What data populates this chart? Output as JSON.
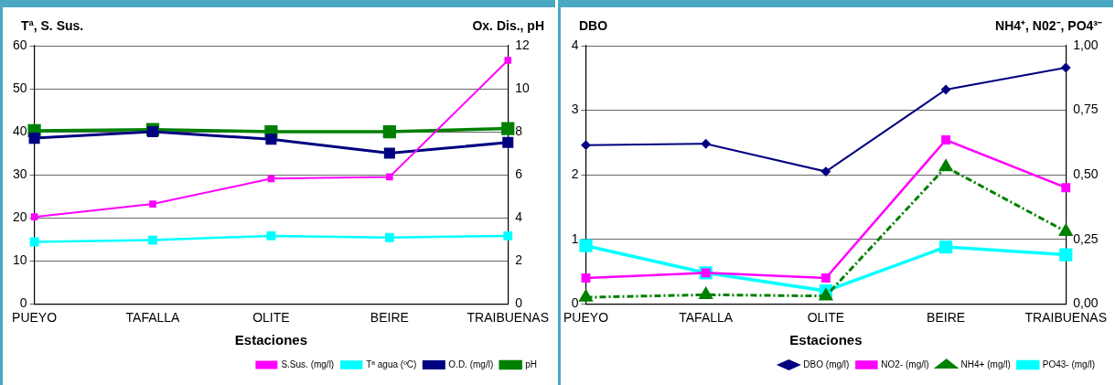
{
  "chart_data": [
    {
      "type": "line",
      "ylabel": "Tª, S. Sus.",
      "y2label": "Ox. Dis., pH",
      "xlabel": "Estaciones",
      "categories": [
        "PUEYO",
        "TAFALLA",
        "OLITE",
        "BEIRE",
        "TRAIBUENAS"
      ],
      "ylim": [
        0,
        60
      ],
      "yticks": [
        0,
        10,
        20,
        30,
        40,
        50,
        60
      ],
      "y2lim": [
        0,
        12
      ],
      "y2ticks": [
        0,
        2,
        4,
        6,
        8,
        10,
        12
      ],
      "grid": "y",
      "legend": "bottom right",
      "series": [
        {
          "name": "S.Sus. (mg/l)",
          "color": "#ff00ff",
          "marker": "square",
          "values": [
            20.2,
            23.2,
            29.1,
            29.5,
            56.6
          ]
        },
        {
          "name": "Tª agua (ºC)",
          "color": "#00ffff",
          "marker": "square",
          "values": [
            14.4,
            14.8,
            15.8,
            15.4,
            15.8
          ]
        },
        {
          "name": "O.D. (mg/l)",
          "color": "#000080",
          "marker": "square",
          "axis": "y2",
          "values": [
            7.7,
            8.0,
            7.65,
            7.0,
            7.5
          ]
        },
        {
          "name": "pH",
          "color": "#008000",
          "marker": "square",
          "axis": "y2",
          "values": [
            8.05,
            8.1,
            8.0,
            8.0,
            8.15
          ]
        }
      ]
    },
    {
      "type": "line",
      "ylabel": "DBO",
      "y2label": "NH4⁺, N02⁻, PO4³⁻",
      "xlabel": "Estaciones",
      "categories": [
        "PUEYO",
        "TAFALLA",
        "OLITE",
        "BEIRE",
        "TRAIBUENAS"
      ],
      "ylim": [
        0,
        4
      ],
      "yticks": [
        0,
        1,
        2,
        3,
        4
      ],
      "y2lim": [
        0,
        1
      ],
      "y2ticks": [
        {
          "value": 0,
          "label": "0,00"
        },
        {
          "value": 0.25,
          "label": "0,25"
        },
        {
          "value": 0.5,
          "label": "0,50"
        },
        {
          "value": 0.75,
          "label": "0,75"
        },
        {
          "value": 1,
          "label": "1,00"
        }
      ],
      "grid": "y",
      "legend": "bottom right",
      "series": [
        {
          "name": "DBO (mg/l)",
          "color": "#000080",
          "marker": "diamond",
          "values": [
            2.46,
            2.48,
            2.05,
            3.32,
            3.66
          ]
        },
        {
          "name": "NO2- (mg/l)",
          "color": "#ff00ff",
          "marker": "square",
          "axis": "y2",
          "values": [
            0.1,
            0.12,
            0.1,
            0.635,
            0.45
          ]
        },
        {
          "name": "NH4+ (mg/l)",
          "color": "#008000",
          "marker": "triangle",
          "line_style": "dashed",
          "axis": "y2",
          "values": [
            0.025,
            0.035,
            0.03,
            0.53,
            0.28
          ]
        },
        {
          "name": "PO43- (mg/l)",
          "color": "#00ffff",
          "marker": "square",
          "axis": "y2",
          "values": [
            0.225,
            0.12,
            0.05,
            0.22,
            0.19
          ]
        }
      ]
    }
  ]
}
